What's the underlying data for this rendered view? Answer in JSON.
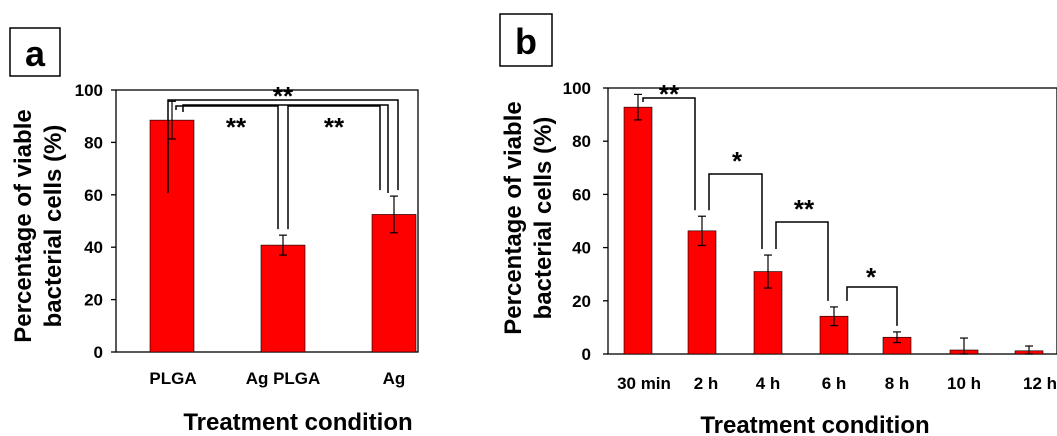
{
  "chart_data": [
    {
      "panel": "a",
      "type": "bar",
      "categories": [
        "PLGA",
        "Ag PLGA",
        "Ag"
      ],
      "values": [
        88.5,
        40.8,
        52.5
      ],
      "errors": [
        7.2,
        3.8,
        7.0
      ],
      "ylabel_line1": "Percentage of viable",
      "ylabel_line2": "bacterial cells (%)",
      "xlabel": "Treatment condition",
      "ylim": [
        0,
        100
      ],
      "yticks": [
        "0",
        "20",
        "40",
        "60",
        "80",
        "100"
      ],
      "bar_color": "#ff0000",
      "grid": false,
      "significance": [
        {
          "from": 0,
          "to": 1,
          "label": "**"
        },
        {
          "from": 1,
          "to": 2,
          "label": "**"
        },
        {
          "from": 0,
          "to": 2,
          "label": "**"
        }
      ]
    },
    {
      "panel": "b",
      "type": "bar",
      "categories": [
        "30 min",
        "2 h",
        "4 h",
        "6 h",
        "8 h",
        "10 h",
        "12 h"
      ],
      "values": [
        92.8,
        46.3,
        31.0,
        14.2,
        6.3,
        1.5,
        1.2
      ],
      "errors": [
        4.8,
        5.5,
        6.2,
        3.5,
        2.0,
        4.5,
        1.8
      ],
      "ylabel_line1": "Percentage of viable",
      "ylabel_line2": "bacterial cells (%)",
      "xlabel": "Treatment condition",
      "ylim": [
        0,
        100
      ],
      "yticks": [
        "0",
        "20",
        "40",
        "60",
        "80",
        "100"
      ],
      "bar_color": "#ff0000",
      "grid": false,
      "significance": [
        {
          "from": 0,
          "to": 1,
          "label": "**"
        },
        {
          "from": 1,
          "to": 2,
          "label": "*"
        },
        {
          "from": 2,
          "to": 3,
          "label": "**"
        },
        {
          "from": 3,
          "to": 4,
          "label": "*"
        }
      ]
    }
  ]
}
